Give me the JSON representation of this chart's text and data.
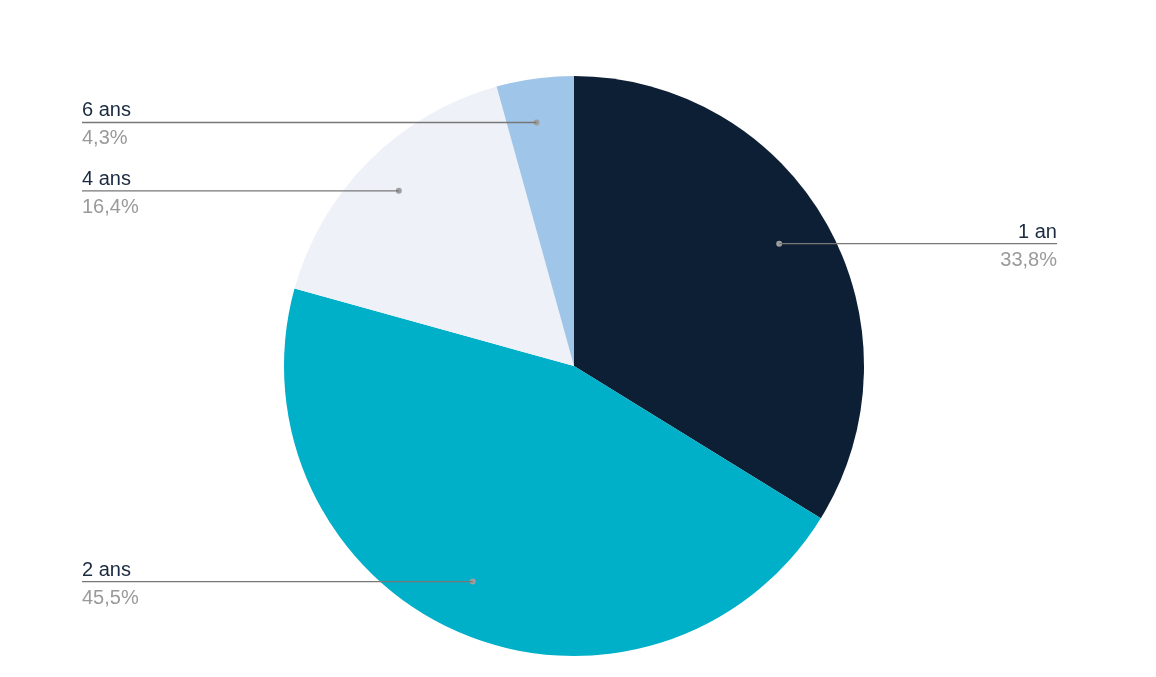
{
  "chart_data": {
    "type": "pie",
    "categories": [
      "1 an",
      "2 ans",
      "4 ans",
      "6 ans"
    ],
    "values": [
      33.8,
      45.5,
      16.4,
      4.3
    ],
    "colors": [
      "#0d1f35",
      "#00afc8",
      "#eef2f8",
      "#9fc5e8"
    ],
    "value_labels": [
      "33,8%",
      "45,5%",
      "16,4%",
      "4,3%"
    ],
    "legend": false
  }
}
